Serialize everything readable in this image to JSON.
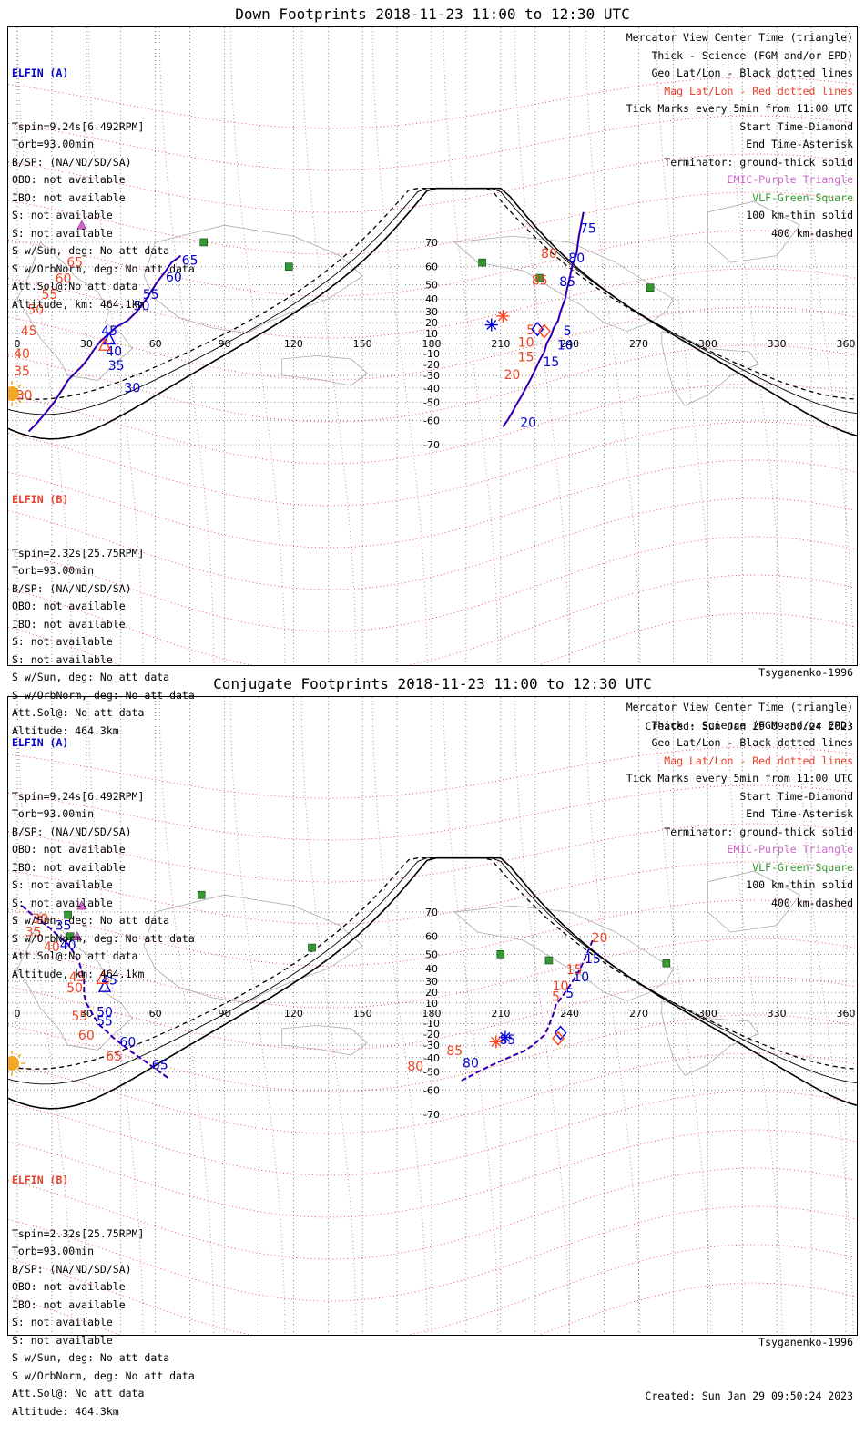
{
  "panels": [
    {
      "title": "Down Footprints 2018-11-23 11:00 to 12:30 UTC",
      "elfin_a": {
        "name": "ELFIN (A)",
        "lines": [
          "Tspin=9.24s[6.492RPM]",
          "Torb=93.00min",
          "B/SP: (NA/ND/SD/SA)",
          "OBO: not available",
          "IBO: not available",
          "S: not available",
          "S: not available",
          "S w/Sun, deg: No att data",
          "S w/OrbNorm, deg: No att data",
          "Att.Sol@:No att data",
          "Altitude, km: 464.1km"
        ]
      },
      "elfin_b": {
        "name": "ELFIN (B)",
        "lines": [
          "Tspin=2.32s[25.75RPM]",
          "Torb=93.00min",
          "B/SP: (NA/ND/SD/SA)",
          "OBO: not available",
          "IBO: not available",
          "S: not available",
          "S: not available",
          "S w/Sun, deg: No att data",
          "S w/OrbNorm, deg: No att data",
          "Att.Sol@: No att data",
          "Altitude: 464.3km"
        ]
      },
      "legend": [
        {
          "text": "Mercator View Center Time (triangle)",
          "color": "black"
        },
        {
          "text": "Thick - Science (FGM and/or EPD)",
          "color": "black"
        },
        {
          "text": "Geo Lat/Lon - Black dotted lines",
          "color": "black"
        },
        {
          "text": "Mag Lat/Lon - Red dotted lines",
          "color": "red"
        },
        {
          "text": "Tick Marks every 5min from 11:00 UTC",
          "color": "black"
        },
        {
          "text": "Start Time-Diamond",
          "color": "black"
        },
        {
          "text": "End Time-Asterisk",
          "color": "black"
        },
        {
          "text": "Terminator: ground-thick solid",
          "color": "black"
        },
        {
          "text": "EMIC-Purple Triangle",
          "color": "purple"
        },
        {
          "text": "VLF-Green-Square",
          "color": "green"
        },
        {
          "text": "100 km-thin solid",
          "color": "black"
        },
        {
          "text": "400 km-dashed",
          "color": "black"
        }
      ],
      "model": "Tsyganenko-1996",
      "created": "Created: Sun Jan 29 09:50:24 2023",
      "track_a": {
        "points": [
          [
            71,
            65
          ],
          [
            67,
            62
          ],
          [
            64,
            57
          ],
          [
            61,
            52
          ],
          [
            58,
            45
          ],
          [
            56,
            40
          ],
          [
            54,
            35
          ],
          [
            52,
            30
          ],
          [
            48,
            22
          ],
          [
            43,
            16
          ],
          [
            40,
            10
          ],
          [
            36,
            2
          ],
          [
            33,
            -7
          ],
          [
            31,
            -14
          ],
          [
            28,
            -22
          ],
          [
            25,
            -28
          ],
          [
            22,
            -34
          ],
          [
            20,
            -40
          ],
          [
            18,
            -45
          ],
          [
            16,
            -50
          ],
          [
            13,
            -55
          ],
          [
            11,
            -58
          ],
          [
            8,
            -62
          ],
          [
            5,
            -65
          ]
        ],
        "labels": [
          {
            "t": "65",
            "lon": 75,
            "lat": 61,
            "c": "blue"
          },
          {
            "t": "60",
            "lon": 68,
            "lat": 52,
            "c": "blue"
          },
          {
            "t": "55",
            "lon": 58,
            "lat": 40,
            "c": "blue"
          },
          {
            "t": "50",
            "lon": 54,
            "lat": 31,
            "c": "blue"
          },
          {
            "t": "45",
            "lon": 40,
            "lat": 8,
            "c": "blue"
          },
          {
            "t": "40",
            "lon": 42,
            "lat": -12,
            "c": "blue"
          },
          {
            "t": "35",
            "lon": 43,
            "lat": -25,
            "c": "blue"
          },
          {
            "t": "30",
            "lon": 50,
            "lat": -43,
            "c": "blue"
          },
          {
            "t": "65",
            "lon": 25,
            "lat": 60,
            "c": "red"
          },
          {
            "t": "60",
            "lon": 20,
            "lat": 51,
            "c": "red"
          },
          {
            "t": "55",
            "lon": 14,
            "lat": 40,
            "c": "red"
          },
          {
            "t": "50",
            "lon": 8,
            "lat": 28,
            "c": "red"
          },
          {
            "t": "45",
            "lon": 5,
            "lat": 8,
            "c": "red"
          },
          {
            "t": "40",
            "lon": 2,
            "lat": -14,
            "c": "red"
          },
          {
            "t": "35",
            "lon": 2,
            "lat": -30,
            "c": "red"
          },
          {
            "t": "30",
            "lon": 3,
            "lat": -48,
            "c": "red"
          }
        ]
      },
      "track_b": {
        "points": [
          [
            246,
            78
          ],
          [
            244,
            72
          ],
          [
            243,
            66
          ],
          [
            241,
            60
          ],
          [
            240,
            54
          ],
          [
            239,
            48
          ],
          [
            238,
            40
          ],
          [
            236,
            30
          ],
          [
            235,
            22
          ],
          [
            233,
            15
          ],
          [
            232,
            8
          ],
          [
            230,
            0
          ],
          [
            229,
            -8
          ],
          [
            227,
            -16
          ],
          [
            225,
            -25
          ],
          [
            223,
            -33
          ],
          [
            221,
            -40
          ],
          [
            219,
            -46
          ],
          [
            217,
            -51
          ],
          [
            215,
            -56
          ],
          [
            213,
            -60
          ],
          [
            211,
            -63
          ]
        ],
        "labels": [
          {
            "t": "75",
            "lon": 248,
            "lat": 73,
            "c": "blue"
          },
          {
            "t": "80",
            "lon": 243,
            "lat": 62,
            "c": "blue"
          },
          {
            "t": "85",
            "lon": 239,
            "lat": 49,
            "c": "blue"
          },
          {
            "t": "5",
            "lon": 239,
            "lat": 8,
            "c": "blue"
          },
          {
            "t": "10",
            "lon": 238,
            "lat": -6,
            "c": "blue"
          },
          {
            "t": "15",
            "lon": 232,
            "lat": -22,
            "c": "blue"
          },
          {
            "t": "20",
            "lon": 222,
            "lat": -63,
            "c": "blue"
          },
          {
            "t": "80",
            "lon": 231,
            "lat": 64,
            "c": "red"
          },
          {
            "t": "85",
            "lon": 227,
            "lat": 50,
            "c": "red"
          },
          {
            "t": "5",
            "lon": 223,
            "lat": 9,
            "c": "red"
          },
          {
            "t": "10",
            "lon": 221,
            "lat": -3,
            "c": "red"
          },
          {
            "t": "15",
            "lon": 221,
            "lat": -17,
            "c": "red"
          },
          {
            "t": "20",
            "lon": 215,
            "lat": -33,
            "c": "red"
          }
        ]
      },
      "start_a": [
        226,
        14
      ],
      "end_a": [
        206,
        18
      ],
      "start_b": [
        229,
        12
      ],
      "end_b": [
        211,
        26
      ],
      "mid_a": [
        40,
        4
      ],
      "mid_b": [
        38,
        -2
      ],
      "emic": [
        [
          28,
          75
        ]
      ],
      "vlf": [
        [
          81,
          70
        ],
        [
          118,
          60
        ],
        [
          202,
          62
        ],
        [
          227,
          54
        ],
        [
          275,
          48
        ]
      ]
    },
    {
      "title": "Conjugate Footprints 2018-11-23 11:00 to 12:30 UTC",
      "elfin_a": {
        "name": "ELFIN (A)",
        "lines": [
          "Tspin=9.24s[6.492RPM]",
          "Torb=93.00min",
          "B/SP: (NA/ND/SD/SA)",
          "OBO: not available",
          "IBO: not available",
          "S: not available",
          "S: not available",
          "S w/Sun, deg: No att data",
          "S w/OrbNorm, deg: No att data",
          "Att.Sol@:No att data",
          "Altitude, km: 464.1km"
        ]
      },
      "elfin_b": {
        "name": "ELFIN (B)",
        "lines": [
          "Tspin=2.32s[25.75RPM]",
          "Torb=93.00min",
          "B/SP: (NA/ND/SD/SA)",
          "OBO: not available",
          "IBO: not available",
          "S: not available",
          "S: not available",
          "S w/Sun, deg: No att data",
          "S w/OrbNorm, deg: No att data",
          "Att.Sol@: No att data",
          "Altitude: 464.3km"
        ]
      },
      "legend": [
        {
          "text": "Mercator View Center Time (triangle)",
          "color": "black"
        },
        {
          "text": "Thick - Science (FGM and/or EPD)",
          "color": "black"
        },
        {
          "text": "Geo Lat/Lon - Black dotted lines",
          "color": "black"
        },
        {
          "text": "Mag Lat/Lon - Red dotted lines",
          "color": "red"
        },
        {
          "text": "Tick Marks every 5min from 11:00 UTC",
          "color": "black"
        },
        {
          "text": "Start Time-Diamond",
          "color": "black"
        },
        {
          "text": "End Time-Asterisk",
          "color": "black"
        },
        {
          "text": "Terminator: ground-thick solid",
          "color": "black"
        },
        {
          "text": "EMIC-Purple Triangle",
          "color": "purple"
        },
        {
          "text": "VLF-Green-Square",
          "color": "green"
        },
        {
          "text": "100 km-thin solid",
          "color": "black"
        },
        {
          "text": "400 km-dashed",
          "color": "black"
        }
      ],
      "model": "Tsyganenko-1996",
      "created": "Created: Sun Jan 29 09:50:24 2023",
      "track_a": {
        "points": [
          [
            2,
            72
          ],
          [
            8,
            68
          ],
          [
            14,
            64
          ],
          [
            18,
            60
          ],
          [
            22,
            56
          ],
          [
            25,
            50
          ],
          [
            27,
            44
          ],
          [
            28,
            38
          ],
          [
            29,
            32
          ],
          [
            29,
            25
          ],
          [
            29,
            18
          ],
          [
            30,
            10
          ],
          [
            32,
            2
          ],
          [
            34,
            -6
          ],
          [
            36,
            -12
          ],
          [
            39,
            -18
          ],
          [
            42,
            -24
          ],
          [
            46,
            -30
          ],
          [
            50,
            -36
          ],
          [
            55,
            -42
          ],
          [
            60,
            -48
          ],
          [
            66,
            -54
          ]
        ],
        "labels": [
          {
            "t": "35",
            "lon": 20,
            "lat": 63,
            "c": "blue"
          },
          {
            "t": "40",
            "lon": 22,
            "lat": 53,
            "c": "blue"
          },
          {
            "t": "45",
            "lon": 40,
            "lat": 27,
            "c": "blue"
          },
          {
            "t": "50",
            "lon": 38,
            "lat": -3,
            "c": "blue"
          },
          {
            "t": "55",
            "lon": 38,
            "lat": -12,
            "c": "blue"
          },
          {
            "t": "60",
            "lon": 48,
            "lat": -31,
            "c": "blue"
          },
          {
            "t": "65",
            "lon": 62,
            "lat": -48,
            "c": "blue"
          },
          {
            "t": "30",
            "lon": 10,
            "lat": 66,
            "c": "red"
          },
          {
            "t": "35",
            "lon": 7,
            "lat": 60,
            "c": "red"
          },
          {
            "t": "40",
            "lon": 15,
            "lat": 52,
            "c": "red"
          },
          {
            "t": "45",
            "lon": 26,
            "lat": 30,
            "c": "red"
          },
          {
            "t": "50",
            "lon": 25,
            "lat": 20,
            "c": "red"
          },
          {
            "t": "55",
            "lon": 27,
            "lat": -7,
            "c": "red"
          },
          {
            "t": "60",
            "lon": 30,
            "lat": -25,
            "c": "red"
          },
          {
            "t": "65",
            "lon": 42,
            "lat": -42,
            "c": "red"
          }
        ]
      },
      "track_b": {
        "points": [
          [
            250,
            58
          ],
          [
            248,
            52
          ],
          [
            246,
            45
          ],
          [
            244,
            38
          ],
          [
            242,
            32
          ],
          [
            240,
            26
          ],
          [
            238,
            20
          ],
          [
            236,
            14
          ],
          [
            234,
            8
          ],
          [
            233,
            0
          ],
          [
            232,
            -6
          ],
          [
            231,
            -12
          ],
          [
            230,
            -17
          ],
          [
            229,
            -21
          ],
          [
            224,
            -30
          ],
          [
            220,
            -35
          ],
          [
            216,
            -38
          ],
          [
            212,
            -41
          ],
          [
            208,
            -44
          ],
          [
            204,
            -47
          ],
          [
            200,
            -50
          ],
          [
            196,
            -53
          ],
          [
            193,
            -55
          ]
        ],
        "labels": [
          {
            "t": "15",
            "lon": 250,
            "lat": 44,
            "c": "blue"
          },
          {
            "t": "10",
            "lon": 245,
            "lat": 30,
            "c": "blue"
          },
          {
            "t": "5",
            "lon": 240,
            "lat": 15,
            "c": "blue"
          },
          {
            "t": "85",
            "lon": 213,
            "lat": -29,
            "c": "blue"
          },
          {
            "t": "80",
            "lon": 197,
            "lat": -47,
            "c": "blue"
          },
          {
            "t": "20",
            "lon": 253,
            "lat": 57,
            "c": "red"
          },
          {
            "t": "15",
            "lon": 242,
            "lat": 36,
            "c": "red"
          },
          {
            "t": "10",
            "lon": 236,
            "lat": 22,
            "c": "red"
          },
          {
            "t": "5",
            "lon": 234,
            "lat": 12,
            "c": "red"
          },
          {
            "t": "85",
            "lon": 190,
            "lat": -38,
            "c": "red"
          },
          {
            "t": "80",
            "lon": 173,
            "lat": -49,
            "c": "red"
          }
        ]
      },
      "start_a": [
        236,
        -19
      ],
      "end_a": [
        212,
        -23
      ],
      "start_b": [
        235,
        -24
      ],
      "end_b": [
        208,
        -27
      ],
      "mid_a": [
        38,
        25
      ],
      "mid_b": [
        37,
        32
      ],
      "emic": [
        [
          28,
          72
        ],
        [
          26,
          60
        ]
      ],
      "vlf": [
        [
          80,
          75
        ],
        [
          22,
          69
        ],
        [
          23,
          60
        ],
        [
          128,
          54
        ],
        [
          210,
          50
        ],
        [
          231,
          46
        ],
        [
          282,
          44
        ]
      ]
    }
  ]
}
